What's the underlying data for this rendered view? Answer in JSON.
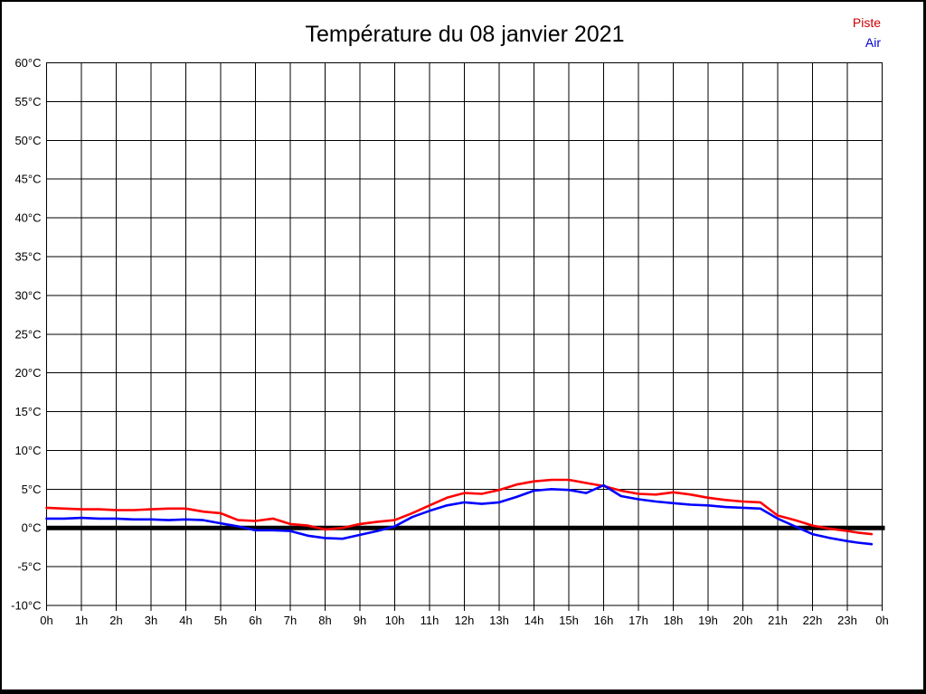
{
  "title": "Température du 08 janvier 2021",
  "legend": {
    "items": [
      {
        "label": "Piste",
        "color": "#cc0000"
      },
      {
        "label": "Air",
        "color": "#0000cc"
      }
    ],
    "position": "top-right"
  },
  "chart_data": {
    "type": "line",
    "title": "Température du 08 janvier 2021",
    "xlabel": "",
    "ylabel": "",
    "ylim": [
      -10,
      60
    ],
    "ytick_step": 5,
    "ytick_labels": [
      "60°C",
      "55°C",
      "50°C",
      "45°C",
      "40°C",
      "35°C",
      "30°C",
      "25°C",
      "20°C",
      "15°C",
      "10°C",
      "5°C",
      "0°C",
      "-5°C",
      "-10°C"
    ],
    "ytick_values": [
      60,
      55,
      50,
      45,
      40,
      35,
      30,
      25,
      20,
      15,
      10,
      5,
      0,
      -5,
      -10
    ],
    "xlim_hours": [
      0,
      24
    ],
    "xtick_hours": [
      0,
      1,
      2,
      3,
      4,
      5,
      6,
      7,
      8,
      9,
      10,
      11,
      12,
      13,
      14,
      15,
      16,
      17,
      18,
      19,
      20,
      21,
      22,
      23,
      24
    ],
    "xtick_labels": [
      "0h",
      "1h",
      "2h",
      "3h",
      "4h",
      "5h",
      "6h",
      "7h",
      "8h",
      "9h",
      "10h",
      "11h",
      "12h",
      "13h",
      "14h",
      "15h",
      "16h",
      "17h",
      "18h",
      "19h",
      "20h",
      "21h",
      "22h",
      "23h",
      "0h"
    ],
    "grid": true,
    "zero_line": true,
    "x_hours": [
      0,
      0.5,
      1,
      1.5,
      2,
      2.5,
      3,
      3.5,
      4,
      4.5,
      5,
      5.5,
      6,
      6.5,
      7,
      7.5,
      8,
      8.5,
      9,
      9.5,
      10,
      10.5,
      11,
      11.5,
      12,
      12.5,
      13,
      13.5,
      14,
      14.5,
      15,
      15.5,
      16,
      16.5,
      17,
      17.5,
      18,
      18.5,
      19,
      19.5,
      20,
      20.5,
      21,
      21.5,
      22,
      22.5,
      23,
      23.3,
      23.7
    ],
    "series": [
      {
        "name": "Piste",
        "color": "#ff0000",
        "values": [
          2.6,
          2.5,
          2.4,
          2.4,
          2.3,
          2.3,
          2.4,
          2.5,
          2.5,
          2.1,
          1.9,
          1.0,
          0.9,
          1.2,
          0.5,
          0.3,
          -0.2,
          0.0,
          0.5,
          0.8,
          1.0,
          1.9,
          2.9,
          3.9,
          4.5,
          4.4,
          4.9,
          5.6,
          6.0,
          6.2,
          6.2,
          5.8,
          5.4,
          4.8,
          4.4,
          4.3,
          4.6,
          4.3,
          3.9,
          3.6,
          3.4,
          3.3,
          1.6,
          1.0,
          0.3,
          -0.1,
          -0.4,
          -0.6,
          -0.8
        ]
      },
      {
        "name": "Air",
        "color": "#0000ff",
        "values": [
          1.2,
          1.2,
          1.3,
          1.2,
          1.2,
          1.1,
          1.1,
          1.0,
          1.1,
          1.0,
          0.6,
          0.2,
          -0.3,
          -0.3,
          -0.4,
          -1.0,
          -1.3,
          -1.4,
          -0.9,
          -0.4,
          0.2,
          1.4,
          2.2,
          2.9,
          3.3,
          3.1,
          3.3,
          4.0,
          4.8,
          5.0,
          4.9,
          4.5,
          5.5,
          4.1,
          3.7,
          3.4,
          3.2,
          3.0,
          2.9,
          2.7,
          2.6,
          2.5,
          1.2,
          0.2,
          -0.8,
          -1.3,
          -1.7,
          -1.9,
          -2.1
        ]
      }
    ]
  }
}
